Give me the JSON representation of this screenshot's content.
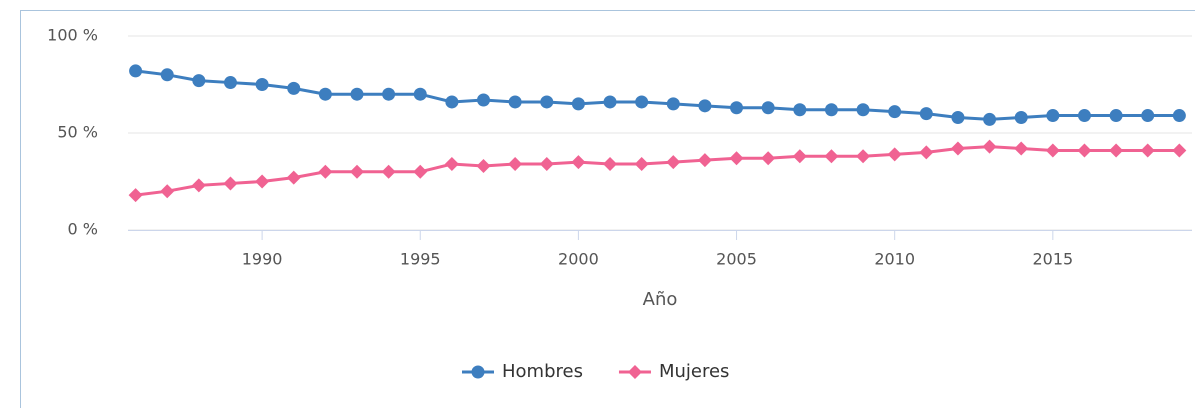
{
  "chart_data": {
    "type": "line",
    "xlabel": "Año",
    "x": [
      1986,
      1987,
      1988,
      1989,
      1990,
      1991,
      1992,
      1993,
      1994,
      1995,
      1996,
      1997,
      1998,
      1999,
      2000,
      2001,
      2002,
      2003,
      2004,
      2005,
      2006,
      2007,
      2008,
      2009,
      2010,
      2011,
      2012,
      2013,
      2014,
      2015,
      2016,
      2017,
      2018,
      2019
    ],
    "series": [
      {
        "name": "Hombres",
        "color": "#3d7ebf",
        "marker": "circle",
        "values": [
          82,
          80,
          77,
          76,
          75,
          73,
          70,
          70,
          70,
          70,
          66,
          67,
          66,
          66,
          65,
          66,
          66,
          65,
          64,
          63,
          63,
          62,
          62,
          62,
          61,
          60,
          58,
          57,
          58,
          59,
          59,
          59,
          59,
          59
        ]
      },
      {
        "name": "Mujeres",
        "color": "#f06292",
        "marker": "diamond",
        "values": [
          18,
          20,
          23,
          24,
          25,
          27,
          30,
          30,
          30,
          30,
          34,
          33,
          34,
          34,
          35,
          34,
          34,
          35,
          36,
          37,
          37,
          38,
          38,
          38,
          39,
          40,
          42,
          43,
          42,
          41,
          41,
          41,
          41,
          41
        ]
      }
    ],
    "xlim": [
      1985.76,
      2019.4
    ],
    "xticks": [
      1990,
      1995,
      2000,
      2005,
      2010,
      2015
    ],
    "ylim": [
      0,
      100
    ],
    "yticks": [
      {
        "value": 0,
        "label": "0 %"
      },
      {
        "value": 50,
        "label": "50 %"
      },
      {
        "value": 100,
        "label": "100 %"
      }
    ],
    "grid": true,
    "legend": "bottom"
  }
}
